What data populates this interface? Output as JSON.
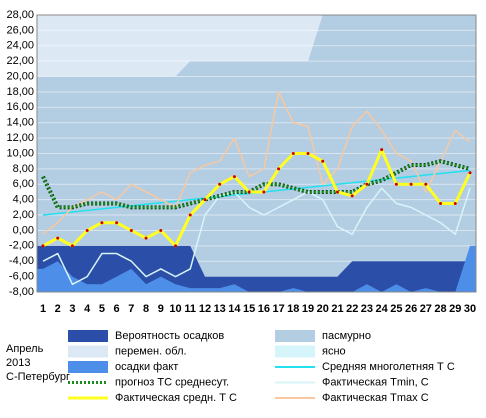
{
  "chart_data": {
    "type": "line",
    "categories": [
      1,
      2,
      3,
      4,
      5,
      6,
      7,
      8,
      9,
      10,
      11,
      12,
      13,
      14,
      15,
      16,
      17,
      18,
      19,
      20,
      21,
      22,
      23,
      24,
      25,
      26,
      27,
      28,
      29,
      30
    ],
    "ylim": [
      -8,
      28
    ],
    "yticks": [
      {
        "value": 28,
        "label": "28,00"
      },
      {
        "value": 26,
        "label": "26,00"
      },
      {
        "value": 24,
        "label": "24,00"
      },
      {
        "value": 22,
        "label": "22,00"
      },
      {
        "value": 20,
        "label": "20,00"
      },
      {
        "value": 18,
        "label": "18,00"
      },
      {
        "value": 16,
        "label": "16,00"
      },
      {
        "value": 14,
        "label": "14,00"
      },
      {
        "value": 12,
        "label": "12,00"
      },
      {
        "value": 10,
        "label": "10,00"
      },
      {
        "value": 8,
        "label": "8,00"
      },
      {
        "value": 6,
        "label": "6,00"
      },
      {
        "value": 4,
        "label": "4,00"
      },
      {
        "value": 2,
        "label": "2,00"
      },
      {
        "value": 0,
        "label": "0,00"
      },
      {
        "value": -2,
        "label": "-2,00"
      },
      {
        "value": -4,
        "label": "-4,00"
      },
      {
        "value": -6,
        "label": "-6,00"
      },
      {
        "value": -8,
        "label": "-8,00"
      }
    ],
    "grid": true,
    "series": [
      {
        "name": "Вероятность осадков",
        "color": "#2b4fa8",
        "kind": "area",
        "values": [
          -2,
          -2,
          -2,
          -2,
          -2,
          -2,
          -2,
          -2,
          -2,
          -2,
          -2,
          -6,
          -6,
          -6,
          -6,
          -6,
          -6,
          -6,
          -6,
          -6,
          -6,
          -4,
          -4,
          -4,
          -4,
          -4,
          -4,
          -4,
          -4,
          -4
        ]
      },
      {
        "name": "пасмурно",
        "color": "#b3cde3",
        "kind": "back",
        "values": [
          20,
          20,
          20,
          20,
          20,
          20,
          20,
          20,
          20,
          20,
          22,
          22,
          22,
          22,
          22,
          22,
          22,
          22,
          22,
          28,
          28,
          28,
          28,
          28,
          28,
          28,
          28,
          28,
          28,
          28
        ]
      },
      {
        "name": "перемен. обл.",
        "color": "#dde8f5",
        "kind": "legend"
      },
      {
        "name": "ясно",
        "color": "#d6f5fb",
        "kind": "legend"
      },
      {
        "name": "осадки факт",
        "color": "#4d8fe8",
        "kind": "area",
        "values": [
          -5,
          -4,
          -6,
          -7,
          -7,
          -6,
          -5,
          -7,
          -6,
          -7,
          -7.5,
          -7.5,
          -7.5,
          -7,
          -8,
          -8,
          -8,
          -7.5,
          -8,
          -8,
          -8,
          -8,
          -7,
          -8,
          -7,
          -8,
          -7.5,
          -8,
          -8,
          -2
        ]
      },
      {
        "name": "Средняя многолетняя Т С",
        "color": "#22e0ee",
        "kind": "line",
        "values": [
          2,
          2.2,
          2.4,
          2.6,
          2.8,
          3,
          3.2,
          3.4,
          3.6,
          3.8,
          4,
          4.2,
          4.4,
          4.6,
          4.8,
          5,
          5.2,
          5.4,
          5.6,
          5.8,
          6,
          6.2,
          6.4,
          6.6,
          6.8,
          7,
          7.2,
          7.4,
          7.6,
          7.8
        ]
      },
      {
        "name": "прогноз ТС среднесут.",
        "color": "#1a8f1a",
        "kind": "dots",
        "values": [
          7,
          3,
          3,
          3.5,
          3.5,
          3.5,
          3,
          3,
          3,
          3,
          3.5,
          4,
          4.5,
          5,
          5,
          6,
          6,
          5.5,
          5,
          5,
          5,
          5,
          6,
          6.5,
          7.5,
          8.5,
          8.5,
          9,
          8.5,
          8
        ]
      },
      {
        "name": "Фактическая Tmin, С",
        "color": "#d8f4fa",
        "kind": "line",
        "values": [
          -4,
          -3,
          -7,
          -6,
          -3,
          -3,
          -4,
          -6,
          -5,
          -6,
          -5,
          2,
          4.5,
          5,
          3,
          2,
          3,
          4,
          5,
          4,
          0.5,
          -0.5,
          3,
          5.5,
          3.5,
          3,
          2,
          1,
          -0.5,
          5.5
        ]
      },
      {
        "name": "Фактическая средн. Т С",
        "color": "#ffff22",
        "kind": "thick",
        "values": [
          -2,
          -1,
          -2,
          0,
          1,
          1,
          0,
          -1,
          0,
          -2,
          2,
          4,
          6,
          7,
          5,
          5,
          8,
          10,
          10,
          9,
          5,
          4.5,
          6,
          10.5,
          6,
          6,
          6,
          3.5,
          3.5,
          7.5
        ]
      },
      {
        "name": "Фактическая Tmax С",
        "color": "#f8c8a0",
        "kind": "line",
        "values": [
          -0.5,
          1,
          3,
          4,
          5,
          4,
          6,
          5,
          4,
          3,
          7.5,
          8.5,
          9,
          12,
          7,
          8,
          18,
          14,
          13.5,
          6,
          8,
          13.5,
          15.5,
          13,
          10,
          9,
          5,
          9,
          13,
          11.5
        ]
      }
    ],
    "footer": [
      "Апрель",
      "2013",
      "С-Петербург"
    ]
  }
}
